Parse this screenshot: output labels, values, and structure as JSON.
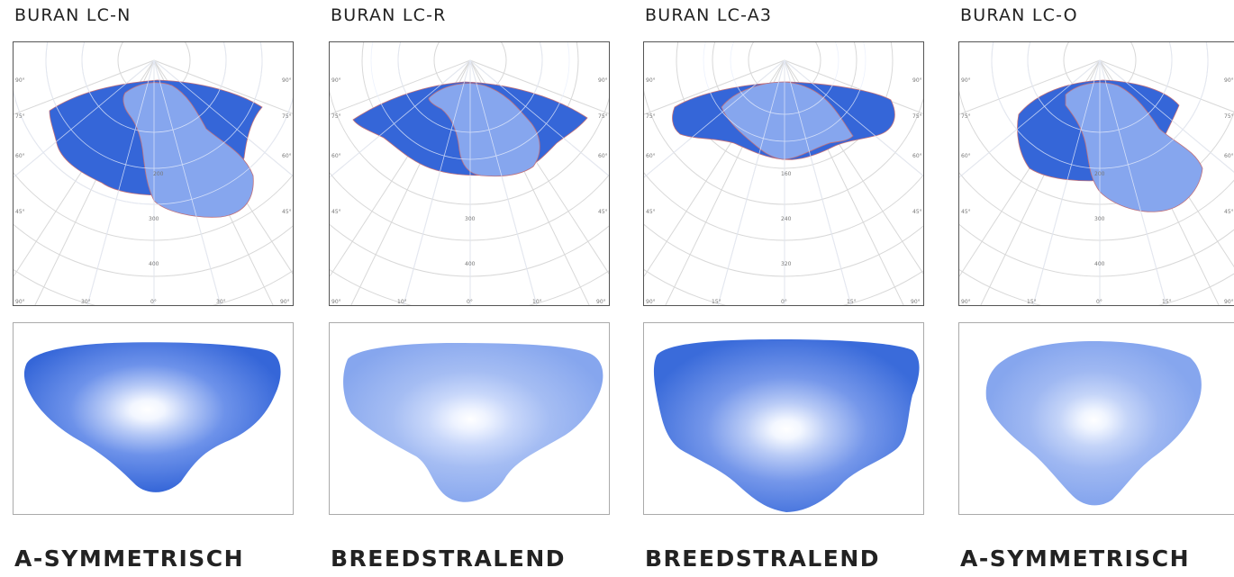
{
  "products": [
    {
      "name": "BURAN LC-N",
      "label": "A-SYMMETRISCH",
      "rings": [
        "200",
        "300",
        "400"
      ],
      "bottom_ticks": [
        "90°",
        "30°",
        "0°",
        "30°",
        "90°"
      ],
      "side_ticks": [
        "90°",
        "75°",
        "60°",
        "45°"
      ]
    },
    {
      "name": "BURAN LC-R",
      "label": "BREEDSTRALEND",
      "rings": [
        "200",
        "300",
        "400"
      ],
      "bottom_ticks": [
        "90°",
        "10°",
        "0°",
        "10°",
        "90°"
      ],
      "side_ticks": [
        "90°",
        "75°",
        "60°",
        "45°"
      ]
    },
    {
      "name": "BURAN LC-A3",
      "label": "BREEDSTRALEND",
      "rings": [
        "160",
        "240",
        "320"
      ],
      "bottom_ticks": [
        "90°",
        "15°",
        "0°",
        "15°",
        "90°"
      ],
      "side_ticks": [
        "90°",
        "75°",
        "60°",
        "45°"
      ]
    },
    {
      "name": "BURAN LC-O",
      "label": "A-SYMMETRISCH",
      "rings": [
        "200",
        "300",
        "400"
      ],
      "bottom_ticks": [
        "90°",
        "15°",
        "0°",
        "15°",
        "90°"
      ],
      "side_ticks": [
        "90°",
        "75°",
        "60°",
        "45°"
      ]
    }
  ],
  "colors": {
    "dark_blue": "#3566d8",
    "light_blue": "#86a6ee",
    "grid": "#d8d8d8",
    "outline": "#c0707a"
  }
}
